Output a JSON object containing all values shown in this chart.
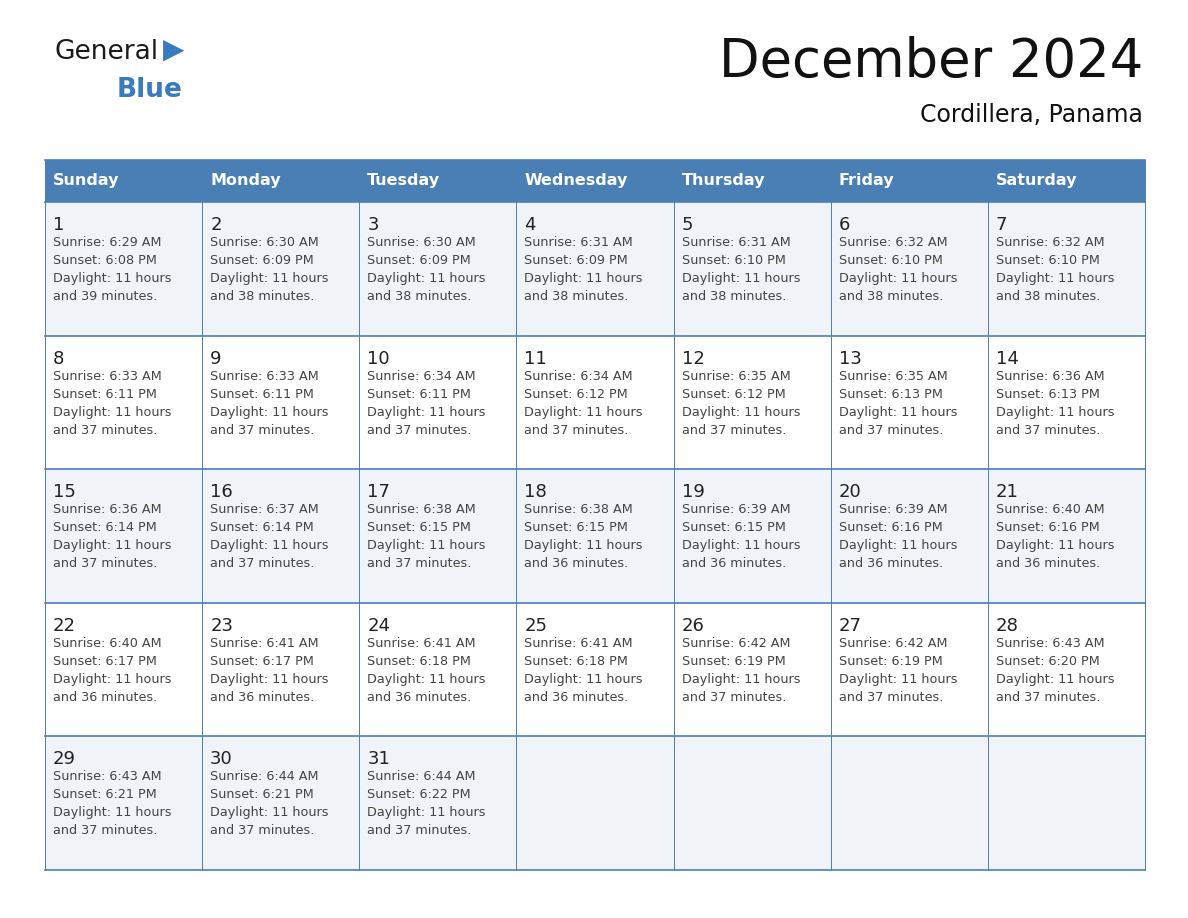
{
  "title": "December 2024",
  "subtitle": "Cordillera, Panama",
  "days_of_week": [
    "Sunday",
    "Monday",
    "Tuesday",
    "Wednesday",
    "Thursday",
    "Friday",
    "Saturday"
  ],
  "header_bg": "#4a7fb5",
  "header_text": "#ffffff",
  "row_bg_even": "#f0f4f8",
  "row_bg_odd": "#ffffff",
  "border_color": "#4a7fb5",
  "day_num_color": "#222222",
  "text_color": "#444444",
  "calendar_data": [
    [
      {
        "day": 1,
        "sunrise": "6:29 AM",
        "sunset": "6:08 PM",
        "daylight": "11 hours and 39 minutes."
      },
      {
        "day": 2,
        "sunrise": "6:30 AM",
        "sunset": "6:09 PM",
        "daylight": "11 hours and 38 minutes."
      },
      {
        "day": 3,
        "sunrise": "6:30 AM",
        "sunset": "6:09 PM",
        "daylight": "11 hours and 38 minutes."
      },
      {
        "day": 4,
        "sunrise": "6:31 AM",
        "sunset": "6:09 PM",
        "daylight": "11 hours and 38 minutes."
      },
      {
        "day": 5,
        "sunrise": "6:31 AM",
        "sunset": "6:10 PM",
        "daylight": "11 hours and 38 minutes."
      },
      {
        "day": 6,
        "sunrise": "6:32 AM",
        "sunset": "6:10 PM",
        "daylight": "11 hours and 38 minutes."
      },
      {
        "day": 7,
        "sunrise": "6:32 AM",
        "sunset": "6:10 PM",
        "daylight": "11 hours and 38 minutes."
      }
    ],
    [
      {
        "day": 8,
        "sunrise": "6:33 AM",
        "sunset": "6:11 PM",
        "daylight": "11 hours and 37 minutes."
      },
      {
        "day": 9,
        "sunrise": "6:33 AM",
        "sunset": "6:11 PM",
        "daylight": "11 hours and 37 minutes."
      },
      {
        "day": 10,
        "sunrise": "6:34 AM",
        "sunset": "6:11 PM",
        "daylight": "11 hours and 37 minutes."
      },
      {
        "day": 11,
        "sunrise": "6:34 AM",
        "sunset": "6:12 PM",
        "daylight": "11 hours and 37 minutes."
      },
      {
        "day": 12,
        "sunrise": "6:35 AM",
        "sunset": "6:12 PM",
        "daylight": "11 hours and 37 minutes."
      },
      {
        "day": 13,
        "sunrise": "6:35 AM",
        "sunset": "6:13 PM",
        "daylight": "11 hours and 37 minutes."
      },
      {
        "day": 14,
        "sunrise": "6:36 AM",
        "sunset": "6:13 PM",
        "daylight": "11 hours and 37 minutes."
      }
    ],
    [
      {
        "day": 15,
        "sunrise": "6:36 AM",
        "sunset": "6:14 PM",
        "daylight": "11 hours and 37 minutes."
      },
      {
        "day": 16,
        "sunrise": "6:37 AM",
        "sunset": "6:14 PM",
        "daylight": "11 hours and 37 minutes."
      },
      {
        "day": 17,
        "sunrise": "6:38 AM",
        "sunset": "6:15 PM",
        "daylight": "11 hours and 37 minutes."
      },
      {
        "day": 18,
        "sunrise": "6:38 AM",
        "sunset": "6:15 PM",
        "daylight": "11 hours and 36 minutes."
      },
      {
        "day": 19,
        "sunrise": "6:39 AM",
        "sunset": "6:15 PM",
        "daylight": "11 hours and 36 minutes."
      },
      {
        "day": 20,
        "sunrise": "6:39 AM",
        "sunset": "6:16 PM",
        "daylight": "11 hours and 36 minutes."
      },
      {
        "day": 21,
        "sunrise": "6:40 AM",
        "sunset": "6:16 PM",
        "daylight": "11 hours and 36 minutes."
      }
    ],
    [
      {
        "day": 22,
        "sunrise": "6:40 AM",
        "sunset": "6:17 PM",
        "daylight": "11 hours and 36 minutes."
      },
      {
        "day": 23,
        "sunrise": "6:41 AM",
        "sunset": "6:17 PM",
        "daylight": "11 hours and 36 minutes."
      },
      {
        "day": 24,
        "sunrise": "6:41 AM",
        "sunset": "6:18 PM",
        "daylight": "11 hours and 36 minutes."
      },
      {
        "day": 25,
        "sunrise": "6:41 AM",
        "sunset": "6:18 PM",
        "daylight": "11 hours and 36 minutes."
      },
      {
        "day": 26,
        "sunrise": "6:42 AM",
        "sunset": "6:19 PM",
        "daylight": "11 hours and 37 minutes."
      },
      {
        "day": 27,
        "sunrise": "6:42 AM",
        "sunset": "6:19 PM",
        "daylight": "11 hours and 37 minutes."
      },
      {
        "day": 28,
        "sunrise": "6:43 AM",
        "sunset": "6:20 PM",
        "daylight": "11 hours and 37 minutes."
      }
    ],
    [
      {
        "day": 29,
        "sunrise": "6:43 AM",
        "sunset": "6:21 PM",
        "daylight": "11 hours and 37 minutes."
      },
      {
        "day": 30,
        "sunrise": "6:44 AM",
        "sunset": "6:21 PM",
        "daylight": "11 hours and 37 minutes."
      },
      {
        "day": 31,
        "sunrise": "6:44 AM",
        "sunset": "6:22 PM",
        "daylight": "11 hours and 37 minutes."
      },
      null,
      null,
      null,
      null
    ]
  ],
  "logo_general_color": "#1a1a1a",
  "logo_blue_color": "#3a7bbf",
  "logo_triangle_color": "#3a7bbf",
  "fig_width": 11.88,
  "fig_height": 9.18,
  "dpi": 100
}
